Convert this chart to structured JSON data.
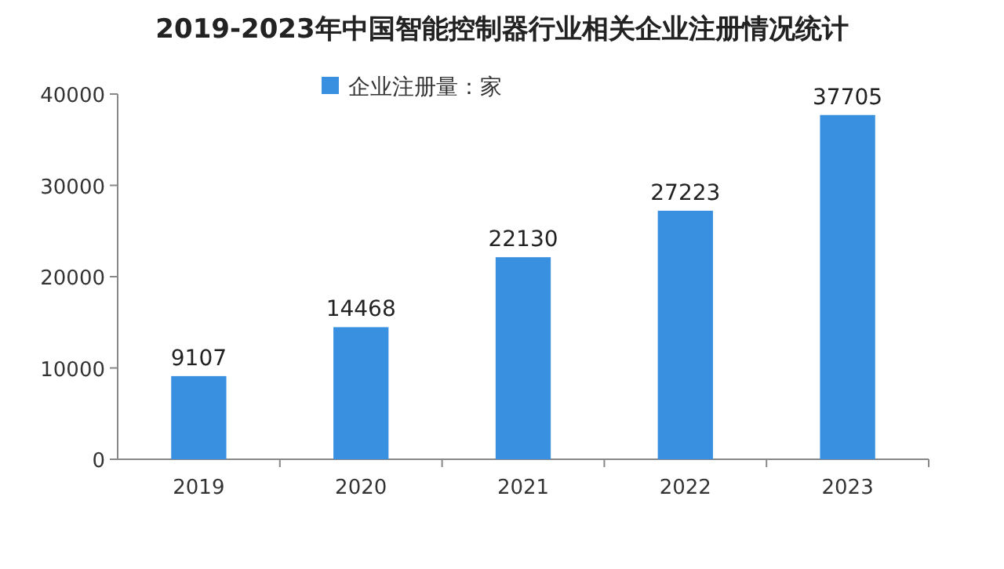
{
  "chart_data": {
    "type": "bar",
    "title": "2019-2023年中国智能控制器行业相关企业注册情况统计",
    "categories": [
      "2019",
      "2020",
      "2021",
      "2022",
      "2023"
    ],
    "series": [
      {
        "name": "企业注册量：家",
        "color": "#3a90e0",
        "values": [
          9107,
          14468,
          22130,
          27223,
          37705
        ]
      }
    ],
    "ylim": [
      0,
      40000
    ],
    "yticks": [
      0,
      10000,
      20000,
      30000,
      40000
    ],
    "data_labels": true,
    "legend": "top left",
    "grid": false
  }
}
